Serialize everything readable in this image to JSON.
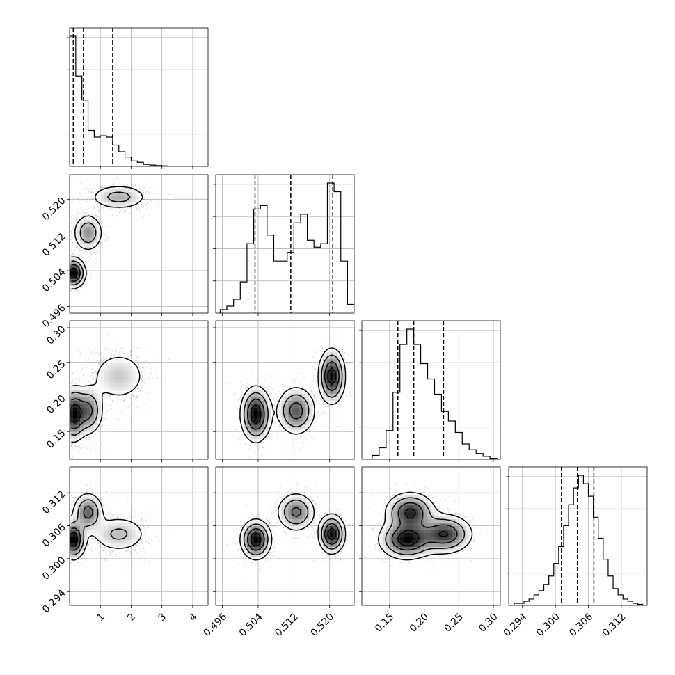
{
  "figure": {
    "type": "corner-plot"
  },
  "chart_data": {
    "type": "corner",
    "parameters": [
      {
        "range": [
          0.0,
          4.5
        ],
        "ticks": [
          "1",
          "2",
          "3",
          "4"
        ],
        "tick_values": [
          1,
          2,
          3,
          4
        ],
        "quantiles": [
          0.12,
          0.45,
          1.4
        ],
        "hist_bins": [
          0.0,
          0.2,
          0.4,
          0.6,
          0.8,
          1.0,
          1.2,
          1.4,
          1.6,
          1.8,
          2.0,
          2.2,
          2.4,
          2.6,
          2.8,
          3.0,
          3.2,
          3.4,
          3.6,
          3.8,
          4.0,
          4.2
        ],
        "hist_counts": [
          0.98,
          0.68,
          0.5,
          0.27,
          0.22,
          0.23,
          0.22,
          0.16,
          0.11,
          0.07,
          0.04,
          0.03,
          0.015,
          0.01,
          0.006,
          0.004,
          0.002,
          0.001,
          0.0,
          0.0,
          0.0,
          0.0
        ]
      },
      {
        "range": [
          0.4945,
          0.5255
        ],
        "ticks": [
          "0.496",
          "0.504",
          "0.512",
          "0.520"
        ],
        "tick_values": [
          0.496,
          0.504,
          0.512,
          0.52
        ],
        "quantiles": [
          0.5033,
          0.5113,
          0.5207
        ],
        "hist_bins": [
          0.4955,
          0.497,
          0.4985,
          0.5,
          0.5015,
          0.503,
          0.5045,
          0.506,
          0.5075,
          0.509,
          0.5105,
          0.512,
          0.5135,
          0.515,
          0.5165,
          0.518,
          0.5195,
          0.521,
          0.5225,
          0.524
        ],
        "hist_counts": [
          0.02,
          0.04,
          0.08,
          0.18,
          0.4,
          0.6,
          0.62,
          0.45,
          0.3,
          0.3,
          0.35,
          0.52,
          0.57,
          0.42,
          0.38,
          0.4,
          0.75,
          0.7,
          0.3,
          0.05
        ]
      },
      {
        "range": [
          0.11,
          0.31
        ],
        "ticks": [
          "0.15",
          "0.20",
          "0.25",
          "0.30"
        ],
        "tick_values": [
          0.15,
          0.2,
          0.25,
          0.3
        ],
        "quantiles": [
          0.162,
          0.185,
          0.228
        ],
        "hist_bins": [
          0.125,
          0.135,
          0.145,
          0.155,
          0.165,
          0.175,
          0.185,
          0.195,
          0.205,
          0.215,
          0.225,
          0.235,
          0.245,
          0.255,
          0.265,
          0.275,
          0.285,
          0.295
        ],
        "hist_counts": [
          0.02,
          0.06,
          0.15,
          0.35,
          0.6,
          0.68,
          0.6,
          0.5,
          0.42,
          0.34,
          0.25,
          0.2,
          0.14,
          0.08,
          0.05,
          0.03,
          0.015,
          0.005
        ]
      },
      {
        "range": [
          0.2915,
          0.3167
        ],
        "ticks": [
          "0.294",
          "0.300",
          "0.306",
          "0.312"
        ],
        "tick_values": [
          0.294,
          0.3,
          0.306,
          0.312
        ],
        "quantiles": [
          0.3011,
          0.304,
          0.307
        ],
        "hist_bins": [
          0.2925,
          0.2934,
          0.2943,
          0.2952,
          0.2961,
          0.297,
          0.2979,
          0.2988,
          0.2997,
          0.3006,
          0.3015,
          0.3024,
          0.3033,
          0.3042,
          0.3051,
          0.306,
          0.3069,
          0.3078,
          0.3087,
          0.3096,
          0.3105,
          0.3114,
          0.3123,
          0.3132,
          0.3141,
          0.315
        ],
        "hist_counts": [
          0.01,
          0.01,
          0.02,
          0.03,
          0.05,
          0.07,
          0.1,
          0.14,
          0.2,
          0.28,
          0.38,
          0.48,
          0.56,
          0.62,
          0.58,
          0.52,
          0.42,
          0.32,
          0.22,
          0.14,
          0.08,
          0.05,
          0.03,
          0.02,
          0.01,
          0.005
        ]
      }
    ],
    "clusters": [
      {
        "mean": [
          0.12,
          0.5035,
          0.175,
          0.3035
        ],
        "sd": [
          0.2,
          0.0017,
          0.02,
          0.0018
        ],
        "weight": 0.38
      },
      {
        "mean": [
          0.6,
          0.5125,
          0.18,
          0.3085
        ],
        "sd": [
          0.25,
          0.0022,
          0.018,
          0.0018
        ],
        "weight": 0.3
      },
      {
        "mean": [
          1.6,
          0.5205,
          0.23,
          0.3045
        ],
        "sd": [
          0.5,
          0.0015,
          0.02,
          0.0018
        ],
        "weight": 0.32
      }
    ],
    "scatter_points_per_panel": 2400,
    "grid": true,
    "legend": "none"
  }
}
